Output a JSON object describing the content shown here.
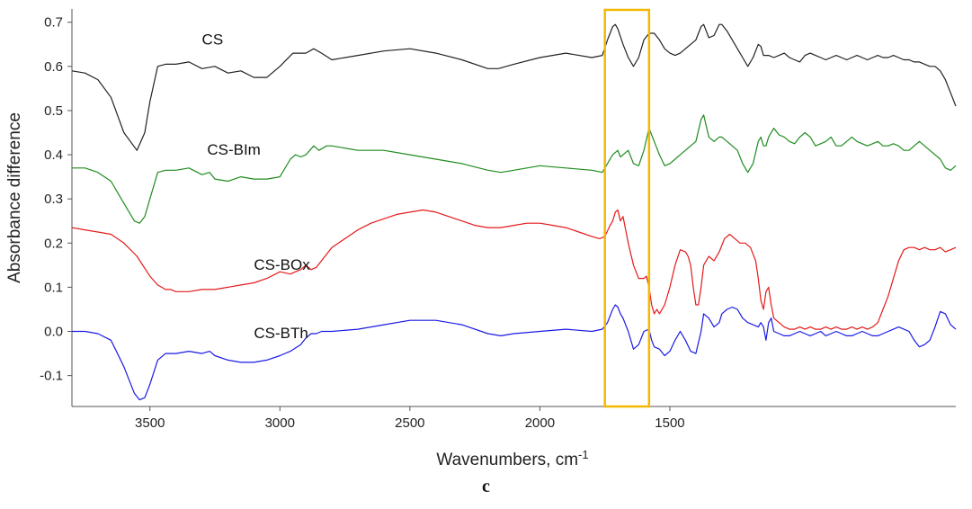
{
  "panel_label": "c",
  "chart_data": {
    "type": "line",
    "title": "",
    "xlabel": "Wavenumbers, cm",
    "xlabel_superscript": "-1",
    "ylabel": "Absorbance difference",
    "x_reversed": true,
    "xlim": [
      3800,
      400
    ],
    "ylim": [
      -0.17,
      0.73
    ],
    "x_ticks": [
      3500,
      3000,
      2500,
      2000,
      1500
    ],
    "x_tick_labels": [
      "3500",
      "3000",
      "2500",
      "2000",
      "1500"
    ],
    "y_ticks": [
      -0.1,
      0.0,
      0.1,
      0.2,
      0.3,
      0.4,
      0.5,
      0.6,
      0.7
    ],
    "y_tick_labels": [
      "-0.1",
      "0.0",
      "0.1",
      "0.2",
      "0.3",
      "0.4",
      "0.5",
      "0.6",
      "0.7"
    ],
    "grid": false,
    "legend": "none",
    "highlight_region": {
      "x_range": [
        1750,
        1580
      ],
      "color": "#f5b800"
    },
    "series": [
      {
        "name": "CS",
        "color": "#222222",
        "label_point": [
          3300,
          0.65
        ],
        "x": [
          3800,
          3750,
          3700,
          3650,
          3600,
          3550,
          3520,
          3500,
          3470,
          3440,
          3400,
          3350,
          3300,
          3250,
          3200,
          3150,
          3100,
          3050,
          3000,
          2950,
          2900,
          2870,
          2840,
          2800,
          2700,
          2600,
          2500,
          2400,
          2300,
          2200,
          2160,
          2100,
          2000,
          1900,
          1800,
          1760,
          1740,
          1720,
          1710,
          1700,
          1680,
          1660,
          1640,
          1620,
          1600,
          1580,
          1560,
          1540,
          1520,
          1500,
          1480,
          1460,
          1440,
          1420,
          1400,
          1380,
          1370,
          1350,
          1330,
          1310,
          1300,
          1280,
          1260,
          1240,
          1220,
          1200,
          1180,
          1160,
          1150,
          1140,
          1120,
          1100,
          1080,
          1060,
          1040,
          1020,
          1000,
          980,
          960,
          940,
          920,
          900,
          880,
          860,
          840,
          820,
          800,
          780,
          760,
          740,
          720,
          700,
          680,
          660,
          640,
          620,
          600,
          580,
          560,
          540,
          520,
          500,
          480,
          460,
          440,
          420,
          400
        ],
        "y": [
          0.59,
          0.585,
          0.57,
          0.53,
          0.45,
          0.41,
          0.45,
          0.52,
          0.6,
          0.605,
          0.605,
          0.61,
          0.595,
          0.6,
          0.585,
          0.59,
          0.575,
          0.575,
          0.6,
          0.63,
          0.63,
          0.64,
          0.63,
          0.615,
          0.625,
          0.635,
          0.64,
          0.63,
          0.615,
          0.595,
          0.595,
          0.605,
          0.62,
          0.63,
          0.62,
          0.625,
          0.66,
          0.69,
          0.695,
          0.685,
          0.65,
          0.62,
          0.6,
          0.62,
          0.66,
          0.675,
          0.675,
          0.66,
          0.64,
          0.63,
          0.625,
          0.63,
          0.64,
          0.65,
          0.66,
          0.69,
          0.695,
          0.665,
          0.67,
          0.695,
          0.695,
          0.68,
          0.66,
          0.64,
          0.62,
          0.6,
          0.62,
          0.65,
          0.645,
          0.625,
          0.625,
          0.62,
          0.625,
          0.63,
          0.62,
          0.615,
          0.61,
          0.625,
          0.63,
          0.625,
          0.62,
          0.615,
          0.62,
          0.625,
          0.62,
          0.615,
          0.62,
          0.625,
          0.62,
          0.615,
          0.62,
          0.625,
          0.62,
          0.62,
          0.625,
          0.62,
          0.615,
          0.615,
          0.61,
          0.61,
          0.605,
          0.6,
          0.6,
          0.59,
          0.57,
          0.54,
          0.51
        ]
      },
      {
        "name": "CS-BIm",
        "color": "#1e8c1e",
        "label_point": [
          3280,
          0.4
        ],
        "x": [
          3800,
          3750,
          3700,
          3650,
          3600,
          3560,
          3540,
          3520,
          3500,
          3470,
          3440,
          3400,
          3350,
          3300,
          3270,
          3250,
          3200,
          3150,
          3100,
          3050,
          3000,
          2960,
          2940,
          2920,
          2900,
          2870,
          2850,
          2820,
          2800,
          2700,
          2600,
          2500,
          2400,
          2300,
          2200,
          2150,
          2100,
          2000,
          1900,
          1800,
          1760,
          1740,
          1720,
          1700,
          1690,
          1680,
          1660,
          1640,
          1620,
          1600,
          1580,
          1570,
          1560,
          1540,
          1520,
          1500,
          1480,
          1460,
          1440,
          1420,
          1400,
          1380,
          1370,
          1350,
          1330,
          1310,
          1300,
          1280,
          1260,
          1240,
          1220,
          1200,
          1180,
          1160,
          1150,
          1140,
          1130,
          1120,
          1100,
          1080,
          1060,
          1040,
          1020,
          1000,
          980,
          960,
          940,
          920,
          900,
          880,
          860,
          840,
          820,
          800,
          780,
          760,
          740,
          720,
          700,
          680,
          660,
          640,
          620,
          600,
          580,
          560,
          540,
          520,
          500,
          480,
          460,
          440,
          420,
          400
        ],
        "y": [
          0.37,
          0.37,
          0.36,
          0.34,
          0.29,
          0.25,
          0.245,
          0.26,
          0.3,
          0.36,
          0.365,
          0.365,
          0.37,
          0.355,
          0.36,
          0.345,
          0.34,
          0.35,
          0.345,
          0.345,
          0.35,
          0.39,
          0.4,
          0.395,
          0.4,
          0.42,
          0.41,
          0.42,
          0.42,
          0.41,
          0.41,
          0.4,
          0.39,
          0.38,
          0.365,
          0.36,
          0.365,
          0.375,
          0.37,
          0.365,
          0.36,
          0.38,
          0.4,
          0.41,
          0.395,
          0.4,
          0.41,
          0.38,
          0.375,
          0.41,
          0.46,
          0.445,
          0.43,
          0.4,
          0.375,
          0.38,
          0.39,
          0.4,
          0.41,
          0.42,
          0.43,
          0.48,
          0.49,
          0.44,
          0.43,
          0.44,
          0.44,
          0.43,
          0.42,
          0.41,
          0.38,
          0.36,
          0.38,
          0.43,
          0.44,
          0.42,
          0.42,
          0.44,
          0.46,
          0.445,
          0.44,
          0.43,
          0.425,
          0.44,
          0.45,
          0.44,
          0.42,
          0.425,
          0.43,
          0.44,
          0.42,
          0.42,
          0.43,
          0.44,
          0.43,
          0.425,
          0.42,
          0.425,
          0.43,
          0.42,
          0.42,
          0.425,
          0.42,
          0.41,
          0.41,
          0.42,
          0.43,
          0.42,
          0.41,
          0.4,
          0.39,
          0.37,
          0.365,
          0.375
        ]
      },
      {
        "name": "CS-BOx",
        "color": "#e41a1a",
        "label_point": [
          3100,
          0.14
        ],
        "x": [
          3800,
          3750,
          3700,
          3650,
          3600,
          3550,
          3500,
          3470,
          3440,
          3420,
          3400,
          3350,
          3300,
          3250,
          3200,
          3150,
          3100,
          3050,
          3000,
          2960,
          2940,
          2920,
          2900,
          2880,
          2860,
          2840,
          2800,
          2750,
          2700,
          2650,
          2600,
          2550,
          2500,
          2450,
          2400,
          2350,
          2300,
          2250,
          2200,
          2150,
          2100,
          2050,
          2000,
          1950,
          1900,
          1850,
          1800,
          1770,
          1750,
          1730,
          1720,
          1710,
          1700,
          1690,
          1680,
          1660,
          1640,
          1620,
          1600,
          1590,
          1580,
          1570,
          1560,
          1550,
          1540,
          1520,
          1500,
          1480,
          1460,
          1440,
          1430,
          1420,
          1410,
          1400,
          1390,
          1380,
          1370,
          1350,
          1330,
          1310,
          1290,
          1270,
          1250,
          1230,
          1210,
          1190,
          1170,
          1160,
          1150,
          1140,
          1130,
          1120,
          1110,
          1100,
          1080,
          1060,
          1040,
          1020,
          1000,
          980,
          960,
          940,
          920,
          900,
          880,
          860,
          840,
          820,
          800,
          780,
          760,
          740,
          720,
          700,
          680,
          660,
          640,
          620,
          600,
          580,
          560,
          540,
          520,
          500,
          480,
          460,
          440,
          420,
          400
        ],
        "y": [
          0.235,
          0.23,
          0.225,
          0.22,
          0.2,
          0.17,
          0.125,
          0.105,
          0.095,
          0.095,
          0.09,
          0.09,
          0.095,
          0.095,
          0.1,
          0.105,
          0.11,
          0.12,
          0.135,
          0.13,
          0.135,
          0.14,
          0.15,
          0.14,
          0.145,
          0.16,
          0.19,
          0.21,
          0.23,
          0.245,
          0.255,
          0.265,
          0.27,
          0.275,
          0.27,
          0.26,
          0.25,
          0.24,
          0.235,
          0.235,
          0.24,
          0.245,
          0.245,
          0.24,
          0.235,
          0.225,
          0.215,
          0.21,
          0.215,
          0.24,
          0.25,
          0.27,
          0.275,
          0.25,
          0.26,
          0.2,
          0.15,
          0.12,
          0.12,
          0.125,
          0.1,
          0.06,
          0.04,
          0.05,
          0.04,
          0.06,
          0.1,
          0.15,
          0.185,
          0.18,
          0.17,
          0.15,
          0.1,
          0.06,
          0.06,
          0.1,
          0.15,
          0.17,
          0.16,
          0.18,
          0.21,
          0.22,
          0.21,
          0.2,
          0.2,
          0.19,
          0.16,
          0.12,
          0.07,
          0.05,
          0.09,
          0.1,
          0.06,
          0.03,
          0.02,
          0.01,
          0.005,
          0.005,
          0.01,
          0.005,
          0.01,
          0.005,
          0.005,
          0.01,
          0.005,
          0.01,
          0.005,
          0.005,
          0.01,
          0.005,
          0.01,
          0.005,
          0.01,
          0.02,
          0.05,
          0.08,
          0.12,
          0.16,
          0.185,
          0.19,
          0.19,
          0.185,
          0.19,
          0.185,
          0.185,
          0.19,
          0.18,
          0.185,
          0.19
        ]
      },
      {
        "name": "CS-BTh",
        "color": "#1a1ae4",
        "label_point": [
          3100,
          -0.015
        ],
        "x": [
          3800,
          3750,
          3700,
          3650,
          3600,
          3560,
          3540,
          3520,
          3500,
          3470,
          3440,
          3400,
          3350,
          3300,
          3270,
          3250,
          3200,
          3150,
          3100,
          3050,
          3000,
          2960,
          2920,
          2900,
          2880,
          2860,
          2840,
          2800,
          2700,
          2600,
          2500,
          2400,
          2300,
          2200,
          2150,
          2100,
          2000,
          1900,
          1800,
          1760,
          1740,
          1720,
          1710,
          1700,
          1690,
          1680,
          1660,
          1640,
          1620,
          1600,
          1580,
          1570,
          1560,
          1540,
          1520,
          1500,
          1480,
          1460,
          1440,
          1420,
          1400,
          1380,
          1370,
          1350,
          1330,
          1310,
          1300,
          1280,
          1260,
          1240,
          1220,
          1200,
          1180,
          1160,
          1150,
          1140,
          1130,
          1120,
          1110,
          1100,
          1080,
          1060,
          1040,
          1020,
          1000,
          980,
          960,
          940,
          920,
          900,
          880,
          860,
          840,
          820,
          800,
          780,
          760,
          740,
          720,
          700,
          680,
          660,
          640,
          620,
          600,
          580,
          560,
          540,
          520,
          500,
          480,
          460,
          440,
          420,
          400
        ],
        "y": [
          0.0,
          0.0,
          -0.005,
          -0.02,
          -0.08,
          -0.14,
          -0.155,
          -0.15,
          -0.12,
          -0.065,
          -0.05,
          -0.05,
          -0.045,
          -0.05,
          -0.045,
          -0.055,
          -0.065,
          -0.07,
          -0.07,
          -0.065,
          -0.055,
          -0.045,
          -0.03,
          -0.015,
          -0.005,
          -0.005,
          0.0,
          0.0,
          0.005,
          0.015,
          0.025,
          0.025,
          0.015,
          -0.005,
          -0.01,
          -0.005,
          0.0,
          0.005,
          0.0,
          0.005,
          0.02,
          0.05,
          0.06,
          0.055,
          0.04,
          0.03,
          0.0,
          -0.04,
          -0.03,
          0.0,
          0.005,
          -0.02,
          -0.035,
          -0.04,
          -0.055,
          -0.045,
          -0.02,
          0.0,
          -0.02,
          -0.045,
          -0.05,
          0.0,
          0.04,
          0.03,
          0.01,
          0.02,
          0.04,
          0.05,
          0.055,
          0.05,
          0.03,
          0.02,
          0.015,
          0.01,
          0.02,
          0.01,
          -0.02,
          0.02,
          0.03,
          0.0,
          -0.005,
          -0.01,
          -0.01,
          -0.005,
          0.0,
          -0.005,
          -0.01,
          -0.005,
          0.0,
          -0.01,
          -0.005,
          0.0,
          -0.005,
          -0.01,
          -0.01,
          -0.005,
          0.0,
          -0.005,
          -0.01,
          -0.01,
          -0.005,
          0.0,
          0.005,
          0.01,
          0.005,
          0.0,
          -0.02,
          -0.035,
          -0.03,
          -0.02,
          0.01,
          0.045,
          0.04,
          0.015,
          0.005
        ]
      }
    ]
  }
}
